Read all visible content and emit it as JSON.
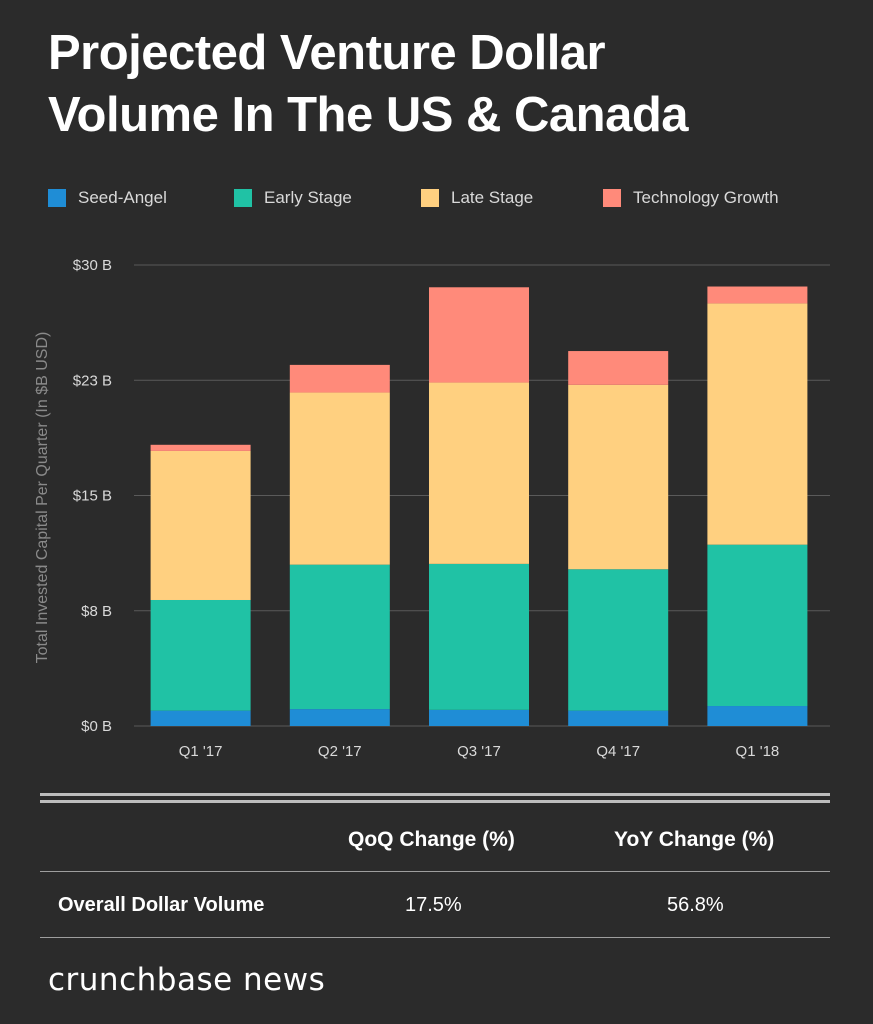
{
  "title": {
    "line1": "Projected Venture Dollar",
    "line2": "Volume In The US & Canada"
  },
  "chart_data": {
    "type": "bar",
    "stacked": true,
    "categories": [
      "Q1 '17",
      "Q2 '17",
      "Q3 '17",
      "Q4 '17",
      "Q1 '18"
    ],
    "series": [
      {
        "name": "Seed-Angel",
        "color": "#1f8dd6",
        "values": [
          1.0,
          1.1,
          1.05,
          1.0,
          1.3
        ]
      },
      {
        "name": "Early Stage",
        "color": "#20c2a5",
        "values": [
          7.2,
          9.4,
          9.5,
          9.2,
          10.5
        ]
      },
      {
        "name": "Late Stage",
        "color": "#ffd080",
        "values": [
          9.7,
          11.2,
          11.8,
          12.0,
          15.7
        ]
      },
      {
        "name": "Technology Growth",
        "color": "#ff8a7a",
        "values": [
          0.4,
          1.8,
          6.2,
          2.2,
          1.1
        ]
      }
    ],
    "ylabel": "Total Invested Capital Per Quarter (In $B USD)",
    "ylim": [
      0,
      30
    ],
    "yticks": [
      0,
      7.5,
      15,
      22.5,
      30
    ],
    "ytick_labels": [
      "$0 B",
      "$8 B",
      "$15 B",
      "$23 B",
      "$30 B"
    ],
    "grid": true,
    "legend_position": "top"
  },
  "stats": {
    "headers": [
      "QoQ Change (%)",
      "YoY Change (%)"
    ],
    "row_label": "Overall Dollar Volume",
    "values": [
      "17.5%",
      "56.8%"
    ]
  },
  "brand": "crunchbase news",
  "colors": {
    "background": "#2b2b2b",
    "grid": "#5a5a5a",
    "rule": "#bdbdbd"
  }
}
